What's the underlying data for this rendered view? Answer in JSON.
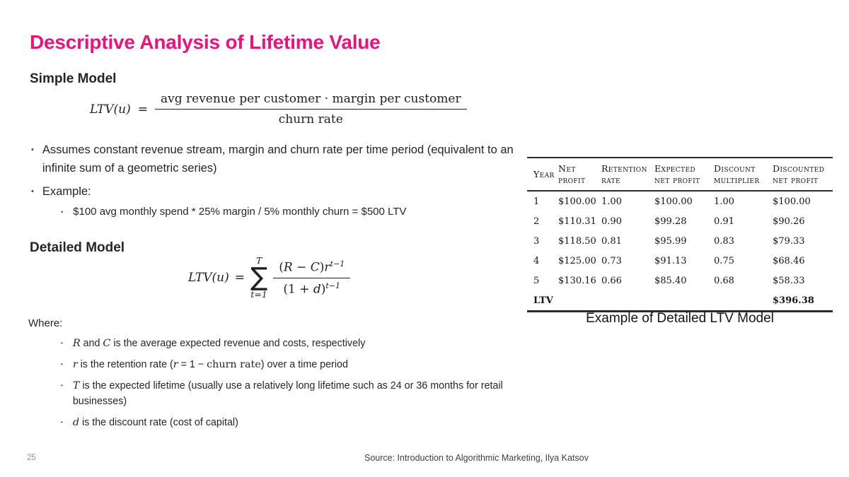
{
  "slide": {
    "title": "Descriptive Analysis of Lifetime Value",
    "title_color": "#e9137d",
    "page_number": "25",
    "source": "Source: Introduction to Algorithmic Marketing, Ilya Katsov"
  },
  "simple_model": {
    "heading": "Simple Model",
    "formula": {
      "lhs": "LTV(u)",
      "equals": "=",
      "numerator": "avg revenue per customer · margin per customer",
      "denominator": "churn rate"
    },
    "bullets": {
      "assumption": "Assumes constant revenue stream, margin and churn rate per time period (equivalent to an infinite sum of a geometric series)",
      "example_label": "Example:",
      "example_detail": "$100 avg monthly spend * 25% margin / 5% monthly churn = $500 LTV"
    }
  },
  "detailed_model": {
    "heading": "Detailed Model",
    "formula": {
      "lhs": "LTV(u)",
      "equals": "=",
      "sum_upper": "T",
      "sigma": "∑",
      "sum_lower": "t=1",
      "numerator_segments": [
        {
          "text": "(",
          "style": "serif"
        },
        {
          "text": "R",
          "style": "math"
        },
        {
          "text": " − ",
          "style": "serif"
        },
        {
          "text": "C",
          "style": "math"
        },
        {
          "text": ")",
          "style": "serif"
        },
        {
          "text": "r",
          "style": "math"
        }
      ],
      "numerator_sup": "t−1",
      "denominator_segments": [
        {
          "text": "(1 + ",
          "style": "serif"
        },
        {
          "text": "d",
          "style": "math"
        },
        {
          "text": ")",
          "style": "serif"
        }
      ],
      "denominator_sup": "t−1"
    },
    "where_label": "Where:",
    "where_bullets": [
      {
        "segments": [
          {
            "text": "R",
            "style": "math"
          },
          {
            "text": " and ",
            "style": "plain"
          },
          {
            "text": "C",
            "style": "math"
          },
          {
            "text": " is the average expected revenue and costs, respectively",
            "style": "plain"
          }
        ]
      },
      {
        "segments": [
          {
            "text": "r",
            "style": "math"
          },
          {
            "text": " is the retention rate (",
            "style": "plain"
          },
          {
            "text": "r",
            "style": "math"
          },
          {
            "text": " = 1 − ",
            "style": "plain"
          },
          {
            "text": "churn rate",
            "style": "serif"
          },
          {
            "text": ") over a time period",
            "style": "plain"
          }
        ]
      },
      {
        "segments": [
          {
            "text": "T",
            "style": "math"
          },
          {
            "text": " is the expected lifetime (usually use a relatively long lifetime such as 24 or 36 months for retail businesses)",
            "style": "plain"
          }
        ]
      },
      {
        "segments": [
          {
            "text": "d",
            "style": "math"
          },
          {
            "text": " is the discount rate (cost of capital)",
            "style": "plain"
          }
        ]
      }
    ]
  },
  "table": {
    "headers": [
      [
        "Year",
        ""
      ],
      [
        "Net",
        "profit"
      ],
      [
        "Retention",
        "rate"
      ],
      [
        "Expected",
        "net profit"
      ],
      [
        "Discount",
        "multiplier"
      ],
      [
        "Discounted",
        "net profit"
      ]
    ],
    "rows": [
      [
        "1",
        "$100.00",
        "1.00",
        "$100.00",
        "1.00",
        "$100.00"
      ],
      [
        "2",
        "$110.31",
        "0.90",
        "$99.28",
        "0.91",
        "$90.26"
      ],
      [
        "3",
        "$118.50",
        "0.81",
        "$95.99",
        "0.83",
        "$79.33"
      ],
      [
        "4",
        "$125.00",
        "0.73",
        "$91.13",
        "0.75",
        "$68.46"
      ],
      [
        "5",
        "$130.16",
        "0.66",
        "$85.40",
        "0.68",
        "$58.33"
      ]
    ],
    "footer_row": [
      "LTV",
      "",
      "",
      "",
      "",
      "$396.38"
    ],
    "caption": "Example of Detailed LTV Model"
  }
}
